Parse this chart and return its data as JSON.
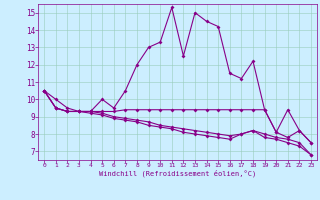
{
  "xlabel": "Windchill (Refroidissement éolien,°C)",
  "x": [
    0,
    1,
    2,
    3,
    4,
    5,
    6,
    7,
    8,
    9,
    10,
    11,
    12,
    13,
    14,
    15,
    16,
    17,
    18,
    19,
    20,
    21,
    22,
    23
  ],
  "line1": [
    10.5,
    10.0,
    9.5,
    9.3,
    9.3,
    10.0,
    9.5,
    10.5,
    12.0,
    13.0,
    13.3,
    15.3,
    12.5,
    15.0,
    14.5,
    14.2,
    11.5,
    11.2,
    12.2,
    9.4,
    8.1,
    9.4,
    8.2,
    7.5
  ],
  "line2": [
    10.5,
    9.5,
    9.3,
    9.3,
    9.3,
    9.3,
    9.3,
    9.4,
    9.4,
    9.4,
    9.4,
    9.4,
    9.4,
    9.4,
    9.4,
    9.4,
    9.4,
    9.4,
    9.4,
    9.4,
    8.1,
    7.8,
    8.2,
    7.5
  ],
  "line3": [
    10.5,
    9.5,
    9.3,
    9.3,
    9.3,
    9.2,
    9.0,
    8.9,
    8.8,
    8.7,
    8.5,
    8.4,
    8.3,
    8.2,
    8.1,
    8.0,
    7.9,
    8.0,
    8.2,
    8.0,
    7.8,
    7.7,
    7.5,
    6.8
  ],
  "line4": [
    10.5,
    9.5,
    9.3,
    9.3,
    9.2,
    9.1,
    8.9,
    8.8,
    8.7,
    8.5,
    8.4,
    8.3,
    8.1,
    8.0,
    7.9,
    7.8,
    7.7,
    8.0,
    8.2,
    7.8,
    7.7,
    7.5,
    7.3,
    6.8
  ],
  "color": "#880088",
  "bg_color": "#cceeff",
  "grid_color": "#99ccbb",
  "ylim": [
    6.5,
    15.5
  ],
  "xlim": [
    -0.5,
    23.5
  ],
  "yticks": [
    7,
    8,
    9,
    10,
    11,
    12,
    13,
    14,
    15
  ],
  "xticks": [
    0,
    1,
    2,
    3,
    4,
    5,
    6,
    7,
    8,
    9,
    10,
    11,
    12,
    13,
    14,
    15,
    16,
    17,
    18,
    19,
    20,
    21,
    22,
    23
  ]
}
